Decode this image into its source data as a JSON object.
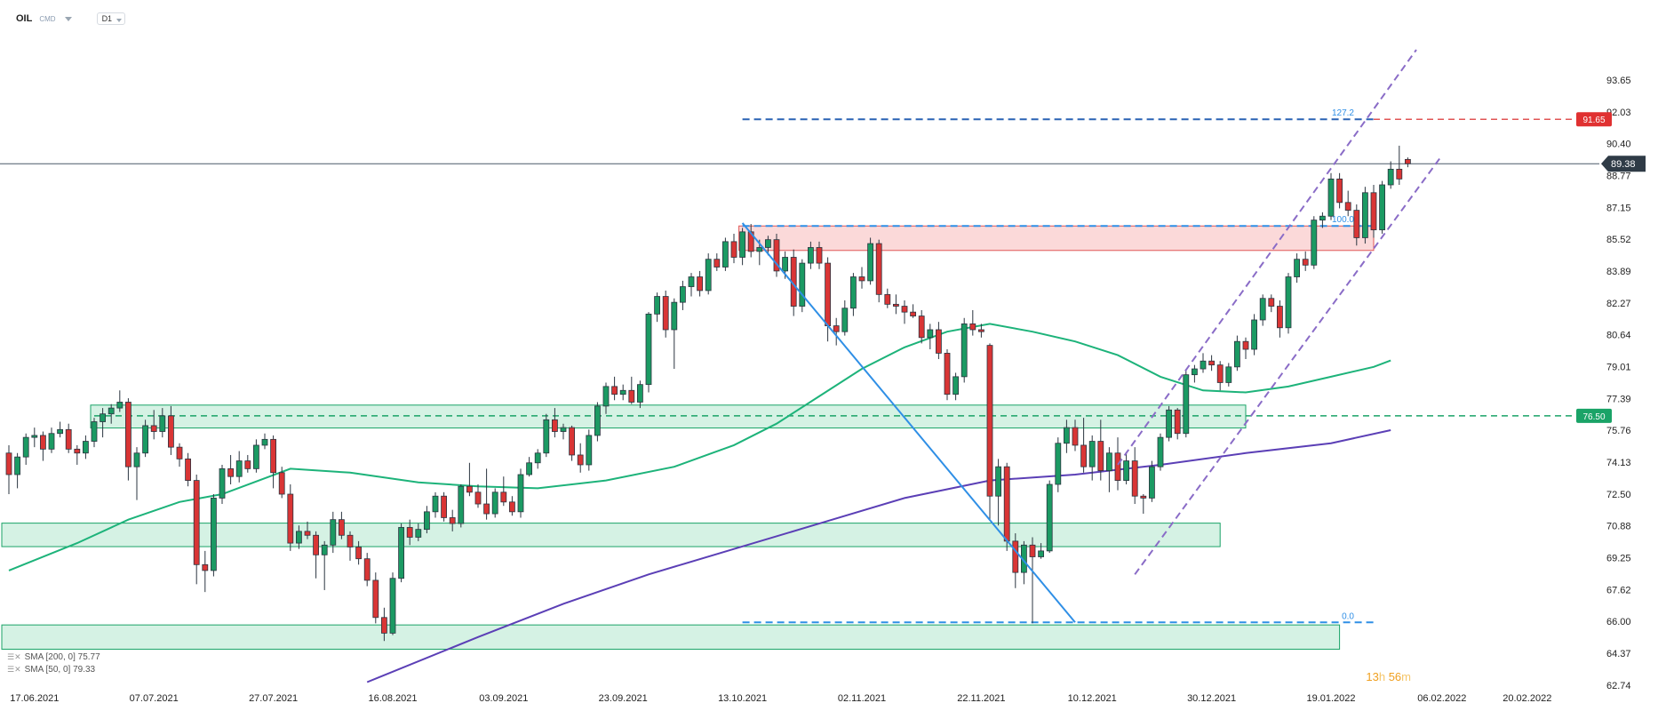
{
  "header": {
    "symbol": "OIL",
    "category": "CMD",
    "timeframe": "D1"
  },
  "legend": {
    "sma200": "SMA [200, 0] 75.77",
    "sma50": "SMA [50, 0] 79.33"
  },
  "countdown": {
    "hours": "13",
    "h_unit": "h",
    "minutes": "56",
    "m_unit": "m"
  },
  "chart_data": {
    "type": "candlestick",
    "symbol": "OIL",
    "timeframe": "D1",
    "ylim": [
      62.74,
      95.2
    ],
    "y_ticks": [
      "93.65",
      "92.03",
      "90.40",
      "88.77",
      "87.15",
      "85.52",
      "83.89",
      "82.27",
      "80.64",
      "79.01",
      "77.39",
      "75.76",
      "74.13",
      "72.50",
      "70.88",
      "69.25",
      "67.62",
      "66.00",
      "64.37",
      "62.74"
    ],
    "x_ticks": [
      {
        "label": "17.06.2021",
        "index": 3
      },
      {
        "label": "07.07.2021",
        "index": 17
      },
      {
        "label": "27.07.2021",
        "index": 31
      },
      {
        "label": "16.08.2021",
        "index": 45
      },
      {
        "label": "03.09.2021",
        "index": 58
      },
      {
        "label": "23.09.2021",
        "index": 72
      },
      {
        "label": "13.10.2021",
        "index": 86
      },
      {
        "label": "02.11.2021",
        "index": 100
      },
      {
        "label": "22.11.2021",
        "index": 114
      },
      {
        "label": "10.12.2021",
        "index": 127
      },
      {
        "label": "30.12.2021",
        "index": 141
      },
      {
        "label": "19.01.2022",
        "index": 155
      },
      {
        "label": "06.02.2022",
        "index": 168
      },
      {
        "label": "20.02.2022",
        "index": 178
      }
    ],
    "current_price": "89.38",
    "price_labels": [
      {
        "text": "91.65",
        "value": 91.65,
        "color": "#e03131"
      },
      {
        "text": "76.50",
        "value": 76.5,
        "color": "#1aa367"
      }
    ],
    "fib_levels": [
      {
        "label": "127.2",
        "value": 91.65
      },
      {
        "label": "100.0",
        "value": 86.2
      },
      {
        "label": "0.0",
        "value": 65.95
      }
    ],
    "zones": [
      {
        "kind": "resistance",
        "top": 86.2,
        "bottom": 84.95,
        "from": 86,
        "to": 160,
        "color": "#f4a0a0"
      },
      {
        "kind": "support",
        "top": 77.05,
        "bottom": 75.88,
        "from": 10,
        "to": 145,
        "color": "#7fd8ad"
      },
      {
        "kind": "support",
        "top": 71.02,
        "bottom": 69.82,
        "from": 0,
        "to": 142,
        "color": "#7fd8ad"
      },
      {
        "kind": "support",
        "top": 65.82,
        "bottom": 64.58,
        "from": 0,
        "to": 156,
        "color": "#7fd8ad"
      }
    ],
    "lines": [
      {
        "kind": "trendline",
        "from": [
          86,
          86.35
        ],
        "to": [
          125,
          65.95
        ],
        "color": "#2f8fe6"
      },
      {
        "kind": "channel-upper",
        "from": [
          130,
          74.0
        ],
        "to": [
          165,
          95.2
        ],
        "color": "#8a6cc7"
      },
      {
        "kind": "channel-lower",
        "from": [
          132,
          68.4
        ],
        "to": [
          168,
          89.8
        ],
        "color": "#8a6cc7"
      }
    ],
    "dashed_levels": [
      {
        "value": 76.5,
        "from": 10,
        "to": 180,
        "color": "#1aa367"
      }
    ],
    "series": [
      {
        "name": "SMA [200, 0]",
        "color": "#5b3fb6",
        "points": [
          [
            42,
            62.9
          ],
          [
            55,
            65.2
          ],
          [
            65,
            66.9
          ],
          [
            75,
            68.4
          ],
          [
            85,
            69.7
          ],
          [
            95,
            71.0
          ],
          [
            105,
            72.3
          ],
          [
            115,
            73.2
          ],
          [
            125,
            73.5
          ],
          [
            135,
            74.0
          ],
          [
            145,
            74.6
          ],
          [
            155,
            75.1
          ],
          [
            162,
            75.77
          ]
        ]
      },
      {
        "name": "SMA [50, 0]",
        "color": "#1db37a",
        "points": [
          [
            0,
            68.6
          ],
          [
            8,
            70.0
          ],
          [
            14,
            71.2
          ],
          [
            20,
            72.1
          ],
          [
            25,
            72.5
          ],
          [
            33,
            73.8
          ],
          [
            40,
            73.6
          ],
          [
            48,
            73.1
          ],
          [
            55,
            72.9
          ],
          [
            62,
            72.8
          ],
          [
            70,
            73.2
          ],
          [
            78,
            73.9
          ],
          [
            85,
            75.0
          ],
          [
            90,
            76.1
          ],
          [
            95,
            77.5
          ],
          [
            100,
            78.9
          ],
          [
            105,
            80.0
          ],
          [
            110,
            80.8
          ],
          [
            115,
            81.2
          ],
          [
            120,
            80.8
          ],
          [
            125,
            80.3
          ],
          [
            130,
            79.6
          ],
          [
            135,
            78.5
          ],
          [
            140,
            77.8
          ],
          [
            145,
            77.7
          ],
          [
            150,
            78.0
          ],
          [
            155,
            78.5
          ],
          [
            160,
            79.0
          ],
          [
            162,
            79.33
          ]
        ]
      }
    ],
    "ohlc": [
      [
        74.6,
        75.0,
        72.5,
        73.5
      ],
      [
        73.5,
        74.6,
        72.8,
        74.4
      ],
      [
        74.4,
        75.6,
        74.0,
        75.4
      ],
      [
        75.4,
        75.9,
        74.9,
        75.5
      ],
      [
        75.5,
        75.7,
        74.2,
        74.8
      ],
      [
        74.8,
        75.9,
        74.6,
        75.6
      ],
      [
        75.6,
        76.2,
        75.4,
        75.8
      ],
      [
        75.8,
        76.1,
        74.6,
        74.8
      ],
      [
        74.8,
        75.0,
        74.0,
        74.6
      ],
      [
        74.6,
        75.5,
        74.3,
        75.2
      ],
      [
        75.2,
        76.4,
        74.9,
        76.2
      ],
      [
        76.2,
        76.9,
        75.4,
        76.6
      ],
      [
        76.6,
        77.1,
        76.1,
        76.9
      ],
      [
        76.9,
        77.8,
        76.7,
        77.2
      ],
      [
        77.2,
        77.4,
        73.2,
        73.9
      ],
      [
        73.9,
        74.9,
        72.2,
        74.6
      ],
      [
        74.6,
        76.3,
        74.4,
        76.0
      ],
      [
        76.0,
        76.8,
        75.3,
        75.7
      ],
      [
        75.7,
        76.9,
        75.4,
        76.5
      ],
      [
        76.5,
        77.0,
        74.5,
        74.9
      ],
      [
        74.9,
        75.1,
        73.9,
        74.3
      ],
      [
        74.3,
        74.6,
        72.9,
        73.2
      ],
      [
        73.2,
        73.5,
        67.9,
        68.9
      ],
      [
        68.9,
        69.6,
        67.5,
        68.6
      ],
      [
        68.6,
        72.5,
        68.3,
        72.3
      ],
      [
        72.3,
        74.0,
        72.0,
        73.8
      ],
      [
        73.8,
        74.5,
        73.0,
        73.4
      ],
      [
        73.4,
        74.7,
        73.1,
        74.2
      ],
      [
        74.2,
        74.5,
        73.6,
        73.8
      ],
      [
        73.8,
        75.3,
        73.6,
        75.0
      ],
      [
        75.0,
        75.6,
        74.8,
        75.3
      ],
      [
        75.3,
        75.5,
        72.8,
        73.6
      ],
      [
        73.6,
        73.9,
        72.3,
        72.5
      ],
      [
        72.5,
        73.0,
        69.6,
        70.0
      ],
      [
        70.0,
        70.9,
        69.7,
        70.6
      ],
      [
        70.6,
        71.1,
        70.2,
        70.4
      ],
      [
        70.4,
        70.6,
        68.2,
        69.4
      ],
      [
        69.4,
        70.1,
        67.6,
        69.9
      ],
      [
        69.9,
        71.6,
        69.5,
        71.2
      ],
      [
        71.2,
        71.6,
        70.2,
        70.4
      ],
      [
        70.4,
        70.6,
        69.1,
        69.8
      ],
      [
        69.8,
        70.1,
        68.9,
        69.2
      ],
      [
        69.2,
        69.5,
        67.8,
        68.1
      ],
      [
        68.1,
        68.5,
        65.9,
        66.2
      ],
      [
        66.2,
        66.7,
        65.0,
        65.4
      ],
      [
        65.4,
        68.5,
        65.3,
        68.2
      ],
      [
        68.2,
        71.0,
        68.0,
        70.8
      ],
      [
        70.8,
        71.2,
        69.9,
        70.3
      ],
      [
        70.3,
        71.0,
        70.1,
        70.7
      ],
      [
        70.7,
        71.9,
        70.5,
        71.6
      ],
      [
        71.6,
        72.6,
        71.3,
        72.4
      ],
      [
        72.4,
        72.6,
        71.1,
        71.3
      ],
      [
        71.3,
        71.7,
        70.6,
        71.0
      ],
      [
        71.0,
        73.0,
        70.8,
        72.9
      ],
      [
        72.9,
        74.1,
        72.4,
        72.6
      ],
      [
        72.6,
        73.0,
        71.8,
        72.0
      ],
      [
        72.0,
        73.8,
        71.2,
        71.5
      ],
      [
        71.5,
        72.8,
        71.3,
        72.6
      ],
      [
        72.6,
        73.4,
        71.9,
        72.1
      ],
      [
        72.1,
        72.4,
        71.4,
        71.6
      ],
      [
        71.6,
        73.8,
        71.3,
        73.5
      ],
      [
        73.5,
        74.4,
        73.4,
        74.1
      ],
      [
        74.1,
        74.8,
        73.8,
        74.6
      ],
      [
        74.6,
        76.6,
        74.4,
        76.3
      ],
      [
        76.3,
        76.9,
        75.4,
        75.7
      ],
      [
        75.7,
        76.1,
        75.3,
        75.9
      ],
      [
        75.9,
        76.0,
        74.2,
        74.5
      ],
      [
        74.5,
        75.1,
        73.6,
        74.0
      ],
      [
        74.0,
        75.8,
        73.7,
        75.5
      ],
      [
        75.5,
        77.2,
        75.2,
        77.0
      ],
      [
        77.0,
        78.2,
        76.6,
        78.0
      ],
      [
        78.0,
        78.5,
        77.3,
        77.6
      ],
      [
        77.6,
        78.1,
        77.3,
        77.8
      ],
      [
        77.8,
        78.5,
        77.1,
        77.2
      ],
      [
        77.2,
        78.3,
        76.9,
        78.1
      ],
      [
        78.1,
        81.8,
        77.7,
        81.7
      ],
      [
        81.7,
        82.8,
        81.3,
        82.6
      ],
      [
        82.6,
        82.9,
        80.5,
        80.9
      ],
      [
        80.9,
        82.5,
        78.9,
        82.3
      ],
      [
        82.3,
        83.4,
        81.9,
        83.1
      ],
      [
        83.1,
        83.8,
        82.6,
        83.6
      ],
      [
        83.6,
        83.9,
        82.6,
        82.9
      ],
      [
        82.9,
        84.8,
        82.7,
        84.5
      ],
      [
        84.5,
        84.8,
        83.9,
        84.1
      ],
      [
        84.1,
        85.6,
        83.9,
        85.4
      ],
      [
        85.4,
        85.8,
        84.3,
        84.6
      ],
      [
        84.6,
        86.1,
        84.2,
        85.9
      ],
      [
        85.9,
        86.3,
        84.6,
        84.9
      ],
      [
        84.9,
        85.5,
        84.2,
        85.1
      ],
      [
        85.1,
        85.7,
        84.7,
        85.5
      ],
      [
        85.5,
        85.8,
        83.6,
        83.9
      ],
      [
        83.9,
        84.9,
        83.5,
        84.6
      ],
      [
        84.6,
        85.0,
        81.6,
        82.1
      ],
      [
        82.1,
        84.5,
        81.8,
        84.3
      ],
      [
        84.3,
        85.4,
        84.0,
        85.1
      ],
      [
        85.1,
        85.4,
        84.0,
        84.3
      ],
      [
        84.3,
        84.6,
        80.3,
        81.1
      ],
      [
        81.1,
        81.5,
        80.1,
        80.8
      ],
      [
        80.8,
        82.4,
        80.6,
        82.0
      ],
      [
        82.0,
        83.8,
        81.6,
        83.6
      ],
      [
        83.6,
        84.1,
        83.0,
        83.4
      ],
      [
        83.4,
        85.6,
        83.2,
        85.3
      ],
      [
        85.3,
        85.5,
        82.3,
        82.7
      ],
      [
        82.7,
        83.0,
        82.0,
        82.2
      ],
      [
        82.2,
        82.7,
        81.7,
        82.1
      ],
      [
        82.1,
        82.4,
        81.2,
        81.8
      ],
      [
        81.8,
        82.2,
        81.5,
        81.6
      ],
      [
        81.6,
        81.9,
        80.2,
        80.5
      ],
      [
        80.5,
        81.2,
        79.9,
        80.9
      ],
      [
        80.9,
        81.3,
        79.4,
        79.7
      ],
      [
        79.7,
        79.9,
        77.3,
        77.6
      ],
      [
        77.6,
        78.7,
        77.3,
        78.5
      ],
      [
        78.5,
        81.5,
        78.2,
        81.2
      ],
      [
        81.2,
        81.9,
        80.6,
        80.9
      ],
      [
        80.9,
        81.2,
        80.5,
        80.8
      ],
      [
        80.1,
        80.2,
        71.2,
        72.4
      ],
      [
        72.4,
        74.3,
        70.9,
        73.9
      ],
      [
        73.9,
        74.1,
        69.6,
        70.1
      ],
      [
        70.1,
        70.5,
        67.7,
        68.5
      ],
      [
        68.5,
        70.1,
        67.9,
        69.9
      ],
      [
        69.9,
        70.3,
        65.9,
        69.3
      ],
      [
        69.3,
        70.0,
        69.2,
        69.6
      ],
      [
        69.6,
        73.2,
        69.5,
        73.0
      ],
      [
        73.0,
        75.4,
        72.6,
        75.1
      ],
      [
        75.1,
        76.3,
        74.6,
        75.9
      ],
      [
        75.9,
        76.3,
        74.7,
        75.0
      ],
      [
        75.0,
        76.4,
        73.6,
        73.9
      ],
      [
        73.9,
        75.5,
        73.2,
        75.2
      ],
      [
        75.2,
        76.3,
        73.2,
        73.7
      ],
      [
        73.7,
        74.9,
        72.6,
        74.6
      ],
      [
        74.6,
        75.4,
        72.7,
        73.2
      ],
      [
        73.2,
        74.6,
        73.0,
        74.2
      ],
      [
        74.2,
        74.9,
        72.0,
        72.4
      ],
      [
        72.4,
        72.5,
        71.5,
        72.3
      ],
      [
        72.3,
        74.2,
        72.1,
        73.9
      ],
      [
        73.9,
        75.6,
        73.7,
        75.4
      ],
      [
        75.4,
        77.0,
        75.2,
        76.8
      ],
      [
        76.8,
        76.9,
        75.3,
        75.6
      ],
      [
        75.6,
        78.8,
        75.4,
        78.6
      ],
      [
        78.6,
        79.1,
        78.2,
        78.9
      ],
      [
        78.9,
        79.7,
        78.7,
        79.3
      ],
      [
        79.3,
        79.6,
        78.8,
        79.1
      ],
      [
        79.1,
        79.3,
        77.8,
        78.2
      ],
      [
        78.2,
        79.2,
        78.0,
        79.0
      ],
      [
        79.0,
        80.6,
        78.8,
        80.3
      ],
      [
        80.3,
        80.5,
        79.4,
        79.9
      ],
      [
        79.9,
        81.7,
        79.6,
        81.4
      ],
      [
        81.4,
        82.7,
        81.1,
        82.5
      ],
      [
        82.5,
        82.7,
        81.8,
        82.1
      ],
      [
        82.1,
        82.4,
        80.5,
        81.0
      ],
      [
        81.0,
        83.8,
        80.7,
        83.6
      ],
      [
        83.6,
        84.8,
        83.3,
        84.5
      ],
      [
        84.5,
        84.9,
        83.9,
        84.2
      ],
      [
        84.2,
        86.7,
        84.0,
        86.5
      ],
      [
        86.5,
        86.9,
        86.1,
        86.7
      ],
      [
        86.7,
        88.9,
        86.5,
        88.6
      ],
      [
        88.6,
        88.9,
        87.1,
        87.4
      ],
      [
        87.4,
        88.0,
        86.7,
        87.0
      ],
      [
        87.0,
        87.3,
        85.2,
        85.6
      ],
      [
        85.6,
        88.2,
        85.3,
        87.9
      ],
      [
        87.9,
        88.3,
        85.6,
        86.0
      ],
      [
        86.0,
        88.5,
        85.8,
        88.3
      ],
      [
        88.3,
        89.5,
        88.1,
        89.1
      ],
      [
        89.1,
        90.3,
        88.3,
        88.6
      ],
      [
        89.6,
        89.7,
        89.2,
        89.38
      ]
    ]
  }
}
